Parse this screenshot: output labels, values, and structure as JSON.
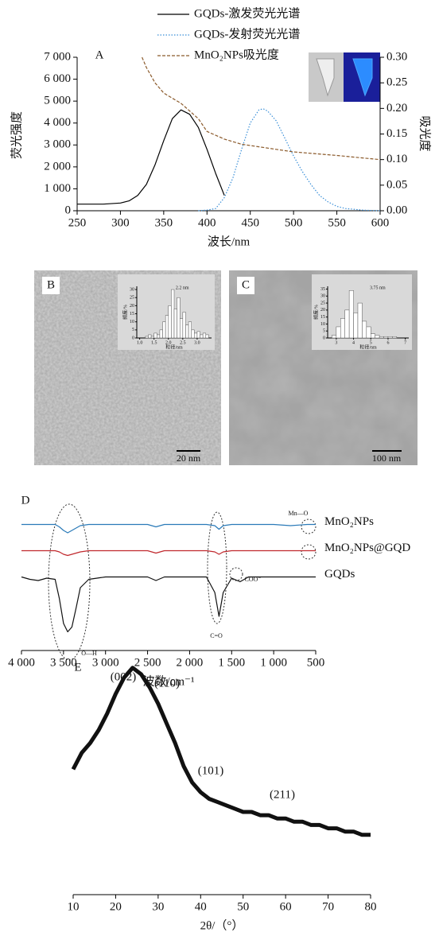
{
  "chart_data": [
    {
      "type": "line",
      "panel_label": "A",
      "xlabel": "波长/nm",
      "ylabel": "荧光强度",
      "y2label": "吸光度",
      "xlim": [
        250,
        600
      ],
      "xticks": [
        250,
        300,
        350,
        400,
        450,
        500,
        550,
        600
      ],
      "ylim": [
        0,
        7000
      ],
      "yticks": [
        0,
        {
          "value": 1000,
          "label": "1 000"
        },
        {
          "value": 2000,
          "label": "2 000"
        },
        {
          "value": 3000,
          "label": "3 000"
        },
        {
          "value": 4000,
          "label": "4 000"
        },
        {
          "value": 5000,
          "label": "5 000"
        },
        {
          "value": 6000,
          "label": "6 000"
        },
        {
          "value": 7000,
          "label": "7 000"
        }
      ],
      "y2lim": [
        0,
        0.3
      ],
      "y2ticks": [
        {
          "value": 0,
          "label": "0.00"
        },
        {
          "value": 0.05,
          "label": "0.05"
        },
        {
          "value": 0.1,
          "label": "0.10"
        },
        {
          "value": 0.15,
          "label": "0.15"
        },
        {
          "value": 0.2,
          "label": "0.20"
        },
        {
          "value": 0.25,
          "label": "0.25"
        },
        {
          "value": 0.3,
          "label": "0.30"
        }
      ],
      "series": [
        {
          "name": "GQDs-激发荧光光谱",
          "color": "#000000",
          "line_style": "solid",
          "x": [
            250,
            260,
            280,
            300,
            310,
            320,
            330,
            340,
            350,
            360,
            370,
            380,
            390,
            400,
            410,
            420
          ],
          "values": [
            300,
            300,
            300,
            350,
            450,
            700,
            1200,
            2100,
            3200,
            4200,
            4600,
            4400,
            3800,
            2800,
            1700,
            700
          ]
        },
        {
          "name": "GQDs-发射荧光光谱",
          "color": "#3a8fd8",
          "line_style": "dotted",
          "x": [
            390,
            400,
            410,
            420,
            430,
            440,
            450,
            460,
            465,
            470,
            480,
            490,
            500,
            510,
            520,
            530,
            540,
            550,
            560,
            580,
            600
          ],
          "values": [
            0,
            30,
            100,
            600,
            1500,
            2800,
            4000,
            4600,
            4650,
            4550,
            4100,
            3300,
            2500,
            1800,
            1200,
            700,
            400,
            200,
            100,
            30,
            0
          ]
        },
        {
          "name": "MnO₂NPs吸光度",
          "color": "#8b5a2b",
          "line_style": "dashed",
          "axis": "y2",
          "x": [
            325,
            330,
            340,
            350,
            360,
            370,
            380,
            390,
            400,
            420,
            440,
            460,
            480,
            500,
            550,
            600
          ],
          "values": [
            0.3,
            0.28,
            0.25,
            0.23,
            0.22,
            0.21,
            0.195,
            0.18,
            0.155,
            0.14,
            0.13,
            0.125,
            0.12,
            0.115,
            0.108,
            0.1
          ]
        }
      ]
    },
    {
      "type": "histogram",
      "panel_label": "B",
      "scale_bar": "20 nm",
      "title": "2.2 nm",
      "xlabel": "粒径/nm",
      "ylabel": "频度/%",
      "xlim": [
        0.9,
        3.5
      ],
      "xticks": [
        {
          "value": 1,
          "label": "1.0"
        },
        1.5,
        {
          "value": 2,
          "label": "2.0"
        },
        2.5,
        {
          "value": 3,
          "label": "3.0"
        }
      ],
      "ylim": [
        0,
        32
      ],
      "yticks": [
        0,
        5,
        10,
        15,
        20,
        25,
        30
      ],
      "bins": [
        1.2,
        1.3,
        1.4,
        1.5,
        1.6,
        1.7,
        1.8,
        1.9,
        2.0,
        2.1,
        2.2,
        2.3,
        2.4,
        2.5,
        2.6,
        2.7,
        2.8,
        2.9,
        3.0,
        3.1,
        3.2,
        3.3,
        3.4
      ],
      "values": [
        1,
        2,
        1,
        3,
        2,
        5,
        10,
        14,
        20,
        30,
        18,
        25,
        12,
        16,
        8,
        10,
        5,
        3,
        4,
        2,
        3,
        2
      ],
      "color": "#ffffff"
    },
    {
      "type": "histogram",
      "panel_label": "C",
      "scale_bar": "100 nm",
      "title": "3.75 nm",
      "xlabel": "粒径/nm",
      "ylabel": "频度/%",
      "xlim": [
        2.5,
        7.2
      ],
      "xticks": [
        3,
        4,
        5,
        6,
        7
      ],
      "ylim": [
        0,
        37
      ],
      "yticks": [
        0,
        5,
        10,
        15,
        20,
        25,
        30,
        35
      ],
      "bins": [
        2.75,
        3,
        3.25,
        3.5,
        3.75,
        4,
        4.25,
        4.5,
        4.75,
        5,
        5.25,
        5.5,
        5.75,
        6,
        6.25,
        6.5
      ],
      "values": [
        2,
        8,
        14,
        20,
        34,
        18,
        25,
        12,
        8,
        3,
        2,
        1,
        1,
        1,
        1
      ],
      "color": "#ffffff"
    },
    {
      "type": "line",
      "panel_label": "D",
      "xlabel": "波数/cm⁻¹",
      "xlim": [
        4000,
        500
      ],
      "xticks": [
        {
          "value": 4000,
          "label": "4 000"
        },
        {
          "value": 3500,
          "label": "3 500"
        },
        {
          "value": 3000,
          "label": "3 000"
        },
        {
          "value": 2500,
          "label": "2 500"
        },
        {
          "value": 2000,
          "label": "2 000"
        },
        {
          "value": 1500,
          "label": "1 500"
        },
        {
          "value": 1000,
          "label": "1 000"
        },
        500
      ],
      "ylim": [
        0,
        100
      ],
      "annotations": [
        "Mn—O",
        "C=O",
        "O—H",
        "COO⁻"
      ],
      "x": [
        4000,
        3900,
        3800,
        3700,
        3600,
        3550,
        3500,
        3450,
        3400,
        3350,
        3300,
        3200,
        3100,
        3000,
        2800,
        2500,
        2400,
        2300,
        2000,
        1800,
        1700,
        1650,
        1600,
        1500,
        1400,
        1300,
        1200,
        1000,
        800,
        600,
        500
      ],
      "series": [
        {
          "name": "MnO₂NPs",
          "color": "#2a7ab8",
          "values": [
            97,
            97,
            97,
            97,
            97,
            95,
            92,
            90,
            92,
            94,
            96,
            97,
            97,
            97,
            97,
            97,
            95,
            97,
            97,
            97,
            96,
            93,
            96,
            97,
            97,
            97,
            97,
            97,
            96,
            97,
            97
          ]
        },
        {
          "name": "MnO₂NPs@GQD",
          "color": "#c0282d",
          "values": [
            75,
            75,
            75,
            75,
            75,
            74,
            72,
            71,
            72,
            73,
            74,
            75,
            75,
            75,
            75,
            75,
            73,
            75,
            75,
            75,
            74,
            72,
            74,
            75,
            75,
            75,
            75,
            75,
            75,
            75,
            75
          ]
        },
        {
          "name": "GQDs",
          "color": "#111111",
          "values": [
            53,
            51,
            50,
            52,
            51,
            35,
            14,
            7,
            11,
            27,
            44,
            51,
            52,
            53,
            53,
            53,
            50,
            53,
            53,
            53,
            40,
            20,
            40,
            52,
            49,
            53,
            53,
            53,
            53,
            53,
            53
          ]
        }
      ]
    },
    {
      "type": "line",
      "panel_label": "E",
      "xlabel": "2θ/（°）",
      "xlim": [
        10,
        80
      ],
      "xticks": [
        10,
        20,
        30,
        40,
        50,
        60,
        70,
        80
      ],
      "ylim": [
        0,
        100
      ],
      "annotations": [
        {
          "text": "(002)",
          "color": "#e03030"
        },
        {
          "text": "(110)",
          "color": "#111111"
        },
        {
          "text": "(101)",
          "color": "#111111"
        },
        {
          "text": "(211)",
          "color": "#111111"
        }
      ],
      "x": [
        10,
        12,
        14,
        16,
        18,
        20,
        22,
        24,
        26,
        28,
        30,
        32,
        34,
        36,
        38,
        40,
        42,
        44,
        46,
        48,
        50,
        52,
        54,
        56,
        58,
        60,
        62,
        64,
        66,
        68,
        70,
        72,
        74,
        76,
        78,
        80
      ],
      "series": [
        {
          "color": "#111111",
          "values": [
            55,
            60,
            63,
            67,
            72,
            78,
            83,
            86,
            84,
            80,
            75,
            69,
            63,
            56,
            51,
            48,
            46,
            45,
            44,
            43,
            42,
            42,
            41,
            41,
            40,
            40,
            39,
            39,
            38,
            38,
            37,
            37,
            36,
            36,
            35,
            35
          ]
        }
      ]
    }
  ]
}
